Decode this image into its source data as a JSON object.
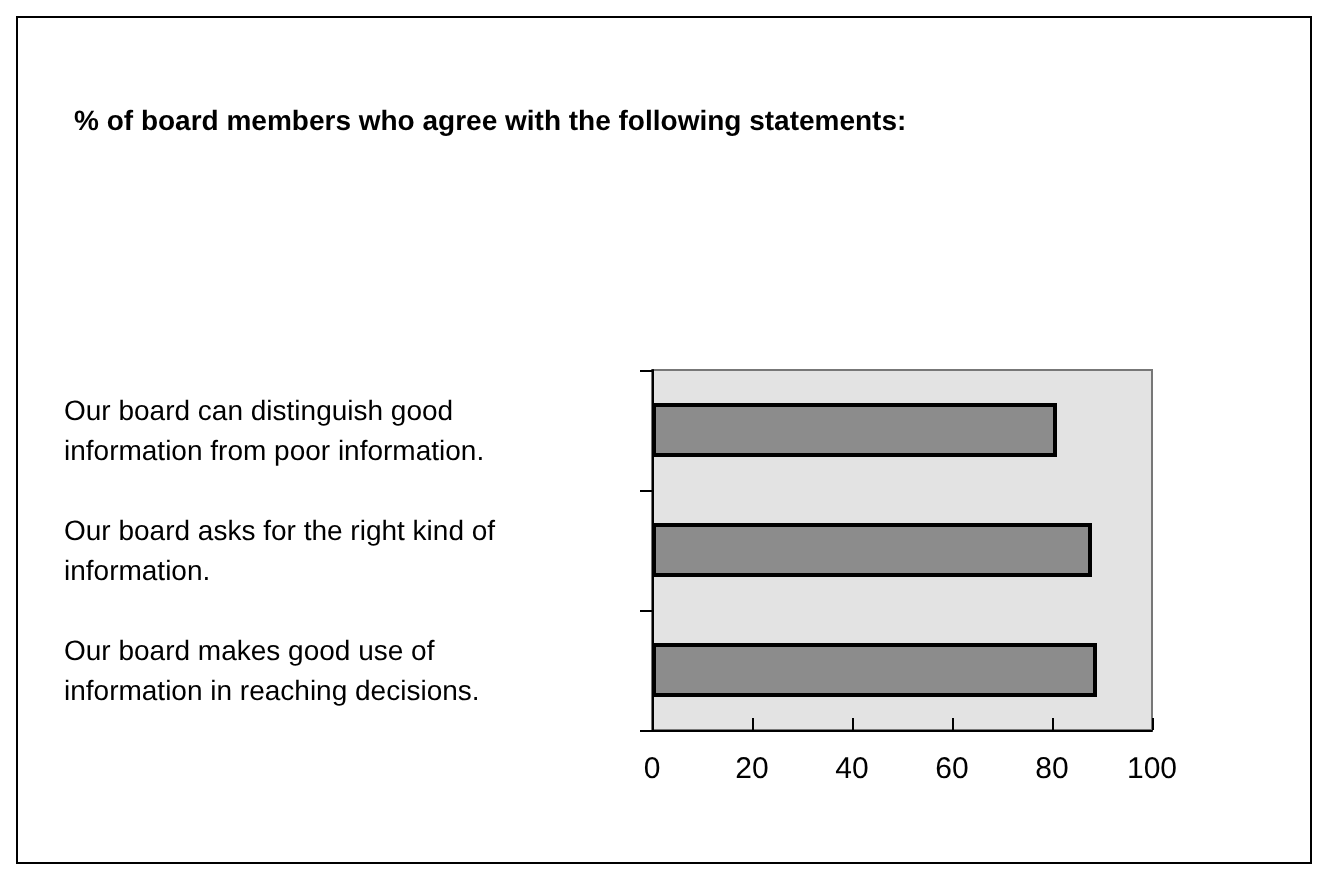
{
  "chart_data": {
    "type": "bar",
    "orientation": "horizontal",
    "title": "% of board members who agree with the following statements:",
    "categories": [
      "Our board can distinguish good information from poor information.",
      "Our board asks for the right kind of information.",
      "Our board makes good use of information in reaching decisions."
    ],
    "values": [
      81,
      88,
      89
    ],
    "color": "#8c8c8c",
    "xlim": [
      0,
      100
    ],
    "xticks": [
      0,
      20,
      40,
      60,
      80,
      100
    ]
  }
}
